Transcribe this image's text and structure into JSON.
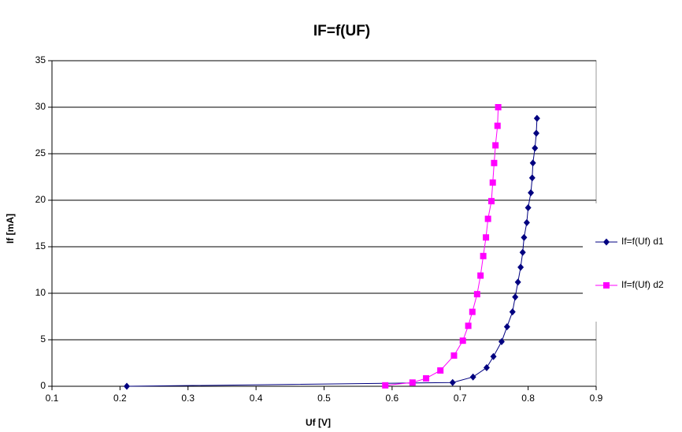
{
  "chart_data": {
    "type": "scatter",
    "title": "IF=f(UF)",
    "x_label": "Uf [V]",
    "y_label": "If [mA]",
    "xlim": [
      0.1,
      0.9
    ],
    "xticks": [
      0.1,
      0.2,
      0.3,
      0.4,
      0.5,
      0.6,
      0.7,
      0.8,
      0.9
    ],
    "ylim": [
      0,
      35
    ],
    "yticks": [
      0,
      5,
      10,
      15,
      20,
      25,
      30,
      35
    ],
    "grid": true,
    "legend": "right",
    "series": [
      {
        "name": "If=f(Uf) d1",
        "color": "#000080",
        "marker": "diamond",
        "x": [
          0.21,
          0.689,
          0.719,
          0.739,
          0.749,
          0.761,
          0.769,
          0.777,
          0.781,
          0.785,
          0.789,
          0.792,
          0.794,
          0.798,
          0.8,
          0.804,
          0.806,
          0.807,
          0.81,
          0.812,
          0.813
        ],
        "values": [
          0,
          0.4,
          1.0,
          2.0,
          3.2,
          4.8,
          6.4,
          8.0,
          9.6,
          11.2,
          12.8,
          14.4,
          16.0,
          17.6,
          19.2,
          20.8,
          22.4,
          24.0,
          25.6,
          27.2,
          28.8
        ]
      },
      {
        "name": "If=f(Uf) d2",
        "color": "#ff00ff",
        "marker": "square",
        "x": [
          0.59,
          0.63,
          0.65,
          0.671,
          0.691,
          0.704,
          0.712,
          0.718,
          0.725,
          0.73,
          0.734,
          0.738,
          0.741,
          0.746,
          0.748,
          0.75,
          0.752,
          0.755,
          0.756
        ],
        "values": [
          0.1,
          0.4,
          0.85,
          1.7,
          3.3,
          4.9,
          6.5,
          8.0,
          9.9,
          11.9,
          14.0,
          16.0,
          18.0,
          19.9,
          21.9,
          24.0,
          25.9,
          28.0,
          30.0
        ]
      }
    ]
  }
}
